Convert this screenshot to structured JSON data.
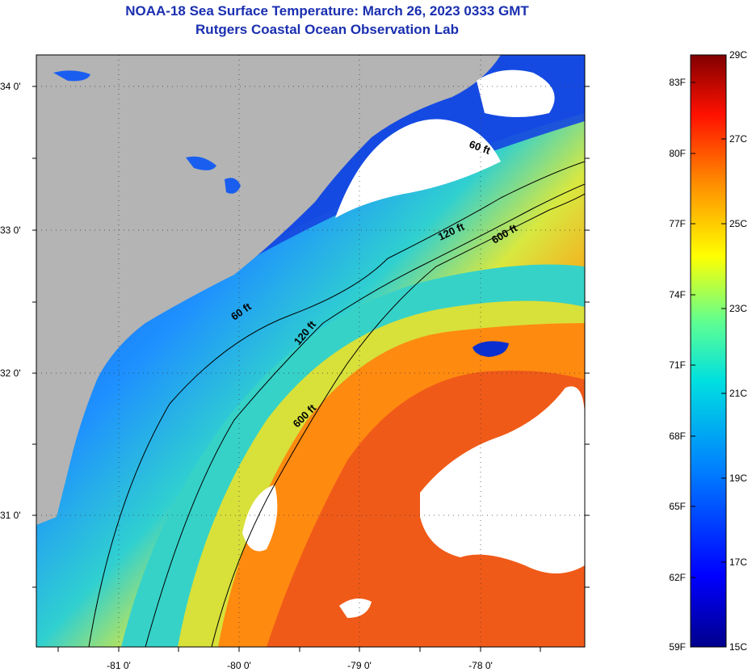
{
  "title": {
    "line1": "NOAA-18 Sea Surface Temperature:  March 26, 2023 0333 GMT",
    "line2": "Rutgers Coastal Ocean Observation Lab"
  },
  "map": {
    "lat_ticks": [
      {
        "value": 34,
        "label": "34 0'"
      },
      {
        "value": 33,
        "label": "33 0'"
      },
      {
        "value": 32,
        "label": "32 0'"
      },
      {
        "value": 31,
        "label": "31 0'"
      }
    ],
    "lon_ticks": [
      {
        "value": -81,
        "label": "-81 0'"
      },
      {
        "value": -80,
        "label": "-80 0'"
      },
      {
        "value": -79,
        "label": "-79 0'"
      },
      {
        "value": -78,
        "label": "-78 0'"
      }
    ],
    "contour_labels": [
      "60 ft",
      "120 ft",
      "600 ft",
      "60 ft",
      "120 ft",
      "600 ft"
    ],
    "colors": {
      "land": "#b4b4b4",
      "cloud": "#ffffff",
      "cold": "#0a1fc8",
      "mid": "#1e90ff",
      "cyan": "#22d3d3",
      "yellow": "#e8e830",
      "warm": "#ff8c00",
      "hot": "#f0501a"
    }
  },
  "colorbar": {
    "fahrenheit": [
      "83F",
      "80F",
      "77F",
      "74F",
      "71F",
      "68F",
      "65F",
      "62F",
      "59F"
    ],
    "celsius": [
      "29C",
      "27C",
      "25C",
      "23C",
      "21C",
      "19C",
      "17C",
      "15C"
    ]
  }
}
